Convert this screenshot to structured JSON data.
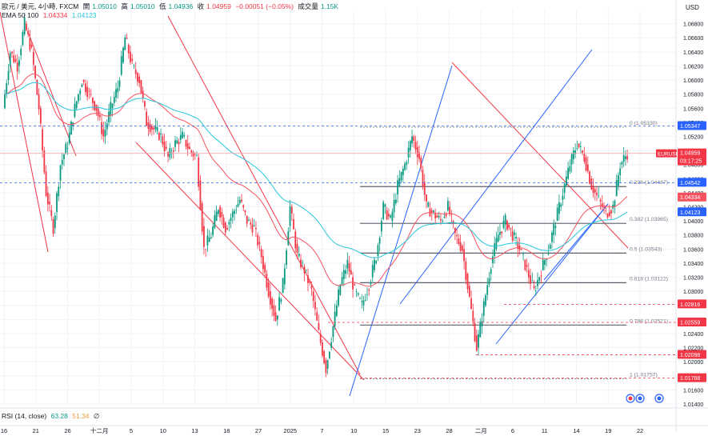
{
  "header": {
    "symbol": "歐元 / 美元, 4小時, FXCM",
    "open_label": "開",
    "open": "1.05010",
    "high_label": "高",
    "high": "1.05010",
    "low_label": "低",
    "low": "1.04936",
    "close_label": "收",
    "close": "1.04959",
    "change": "−0.00051 (−0.05%)",
    "volume_label": "成交量",
    "volume": "1.15K",
    "ema_label": "EMA 50 100",
    "ema50": "1.04334",
    "ema100": "1.04123"
  },
  "axis_currency": "USD",
  "rsi": {
    "label": "RSI (14, close)",
    "value1": "63.28",
    "value2": "51.34",
    "extra": "∅"
  },
  "colors": {
    "up": "#089981",
    "down": "#f23645",
    "ema50": "#f7525f",
    "ema100": "#26c6da",
    "channel": "#2962ff",
    "trend": "#f23645",
    "level_blue": "#2962ff",
    "level_red": "#f23645"
  },
  "chart_data": {
    "type": "candlestick",
    "symbol": "EURUSD",
    "ylim": [
      1.014,
      1.07
    ],
    "yticks": [
      "1.06800",
      "1.06600",
      "1.06400",
      "1.06200",
      "1.06000",
      "1.05800",
      "1.05600",
      "1.05400",
      "1.05200",
      "1.05000",
      "1.04800",
      "1.04600",
      "1.04400",
      "1.04200",
      "1.04000",
      "1.03800",
      "1.03600",
      "1.03400",
      "1.03200",
      "1.03000",
      "1.02800",
      "1.02600",
      "1.02400",
      "1.02200",
      "1.02000",
      "1.01800",
      "1.01600",
      "1.01400"
    ],
    "xticks": [
      "16",
      "21",
      "26",
      "十二月",
      "5",
      "10",
      "13",
      "18",
      "27",
      "2025",
      "7",
      "10",
      "15",
      "23",
      "28",
      "二月",
      "6",
      "11",
      "14",
      "19",
      "22"
    ],
    "fib_levels": [
      {
        "label": "0 (1.05330)",
        "value": 1.0533
      },
      {
        "label": "0.236 (1.04487)",
        "value": 1.04487
      },
      {
        "label": "0.382 (1.03965)",
        "value": 1.03965
      },
      {
        "label": "0.5 (1.03543)",
        "value": 1.03543
      },
      {
        "label": "0.618 (1.03122)",
        "value": 1.03122
      },
      {
        "label": "0.786 (1.02521)",
        "value": 1.02521
      },
      {
        "label": "1 (1.01757)",
        "value": 1.01757
      }
    ],
    "price_tags": [
      {
        "label": "1.05347",
        "value": 1.05347,
        "style": "blue"
      },
      {
        "label": "1.04959",
        "value": 1.04959,
        "style": "current",
        "name": "EURUSD",
        "countdown": "03:17:25"
      },
      {
        "label": "1.04542",
        "value": 1.04542,
        "style": "blue"
      },
      {
        "label": "1.04334",
        "value": 1.04334,
        "style": "red-solid"
      },
      {
        "label": "1.04123",
        "value": 1.04123,
        "style": "cyan-solid"
      },
      {
        "label": "1.02816",
        "value": 1.02816,
        "style": "red"
      },
      {
        "label": "1.02559",
        "value": 1.02559,
        "style": "red"
      },
      {
        "label": "1.02098",
        "value": 1.02098,
        "style": "red"
      },
      {
        "label": "1.01768",
        "value": 1.01768,
        "style": "red"
      }
    ],
    "close_path": [
      [
        0,
        1.056
      ],
      [
        1,
        1.064
      ],
      [
        2,
        1.062
      ],
      [
        3,
        1.068
      ],
      [
        4,
        1.064
      ],
      [
        5,
        1.056
      ],
      [
        6,
        1.044
      ],
      [
        7,
        1.039
      ],
      [
        8,
        1.048
      ],
      [
        9,
        1.051
      ],
      [
        10,
        1.056
      ],
      [
        11,
        1.06
      ],
      [
        12,
        1.058
      ],
      [
        13,
        1.056
      ],
      [
        14,
        1.052
      ],
      [
        15,
        1.056
      ],
      [
        16,
        1.059
      ],
      [
        17,
        1.066
      ],
      [
        18,
        1.062
      ],
      [
        19,
        1.06
      ],
      [
        20,
        1.054
      ],
      [
        21,
        1.053
      ],
      [
        22,
        1.052
      ],
      [
        23,
        1.049
      ],
      [
        24,
        1.051
      ],
      [
        25,
        1.052
      ],
      [
        26,
        1.05
      ],
      [
        27,
        1.049
      ],
      [
        28,
        1.036
      ],
      [
        29,
        1.038
      ],
      [
        30,
        1.042
      ],
      [
        31,
        1.039
      ],
      [
        32,
        1.041
      ],
      [
        33,
        1.043
      ],
      [
        34,
        1.04
      ],
      [
        35,
        1.039
      ],
      [
        36,
        1.035
      ],
      [
        37,
        1.03
      ],
      [
        38,
        1.026
      ],
      [
        39,
        1.031
      ],
      [
        40,
        1.042
      ],
      [
        41,
        1.035
      ],
      [
        42,
        1.033
      ],
      [
        43,
        1.03
      ],
      [
        44,
        1.024
      ],
      [
        45,
        1.019
      ],
      [
        46,
        1.025
      ],
      [
        47,
        1.031
      ],
      [
        48,
        1.034
      ],
      [
        49,
        1.03
      ],
      [
        50,
        1.028
      ],
      [
        51,
        1.031
      ],
      [
        52,
        1.035
      ],
      [
        53,
        1.042
      ],
      [
        54,
        1.04
      ],
      [
        55,
        1.045
      ],
      [
        56,
        1.048
      ],
      [
        57,
        1.052
      ],
      [
        58,
        1.049
      ],
      [
        59,
        1.042
      ],
      [
        60,
        1.041
      ],
      [
        61,
        1.04
      ],
      [
        62,
        1.042
      ],
      [
        63,
        1.038
      ],
      [
        64,
        1.036
      ],
      [
        65,
        1.029
      ],
      [
        66,
        1.022
      ],
      [
        67,
        1.028
      ],
      [
        68,
        1.034
      ],
      [
        69,
        1.038
      ],
      [
        70,
        1.04
      ],
      [
        71,
        1.038
      ],
      [
        72,
        1.036
      ],
      [
        73,
        1.033
      ],
      [
        74,
        1.03
      ],
      [
        75,
        1.033
      ],
      [
        76,
        1.036
      ],
      [
        77,
        1.04
      ],
      [
        78,
        1.044
      ],
      [
        79,
        1.048
      ],
      [
        80,
        1.051
      ],
      [
        81,
        1.049
      ],
      [
        82,
        1.045
      ],
      [
        83,
        1.043
      ],
      [
        84,
        1.041
      ],
      [
        85,
        1.042
      ],
      [
        86,
        1.048
      ],
      [
        87,
        1.0496
      ]
    ]
  }
}
